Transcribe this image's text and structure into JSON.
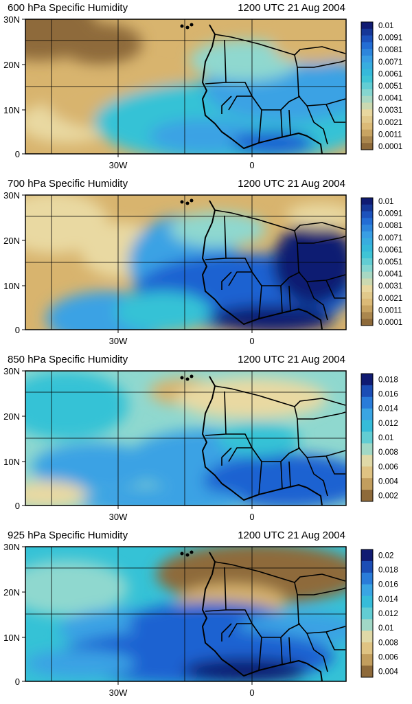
{
  "colors": {
    "brown": "#8e6a3a",
    "tan": "#d8b46e",
    "cream": "#e9d9a2",
    "aqua": "#8fd8cf",
    "cyan": "#35c2d6",
    "sky": "#3aa2e4",
    "blue": "#1f62d1",
    "navy": "#101b72",
    "coast": "#000000",
    "grid": "#000000"
  },
  "panels": [
    {
      "title": "600 hPa Specific Humidity",
      "time": "1200 UTC 21 Aug 2004",
      "lat_ticks": [
        "30N",
        "20N",
        "10N",
        "0"
      ],
      "lon_ticks": [
        "30W",
        "0"
      ],
      "colorbar_labels": [
        "0.01",
        "0.0091",
        "0.0081",
        "0.0071",
        "0.0061",
        "0.0051",
        "0.0041",
        "0.0031",
        "0.0021",
        "0.0011",
        "0.0001"
      ],
      "colorbar_levels": 19
    },
    {
      "title": "700 hPa Specific Humidity",
      "time": "1200 UTC 21 Aug 2004",
      "lat_ticks": [
        "30N",
        "20N",
        "10N",
        "0"
      ],
      "lon_ticks": [
        "30W",
        "0"
      ],
      "colorbar_labels": [
        "0.01",
        "0.0091",
        "0.0081",
        "0.0071",
        "0.0061",
        "0.0051",
        "0.0041",
        "0.0031",
        "0.0021",
        "0.0011",
        "0.0001"
      ],
      "colorbar_levels": 19
    },
    {
      "title": "850 hPa Specific Humidity",
      "time": "1200 UTC 21 Aug 2004",
      "lat_ticks": [
        "30N",
        "20N",
        "10N",
        "0"
      ],
      "lon_ticks": [
        "30W",
        "0"
      ],
      "colorbar_labels": [
        "0.018",
        "0.016",
        "0.014",
        "0.012",
        "0.01",
        "0.008",
        "0.006",
        "0.004",
        "0.002"
      ],
      "colorbar_levels": 11
    },
    {
      "title": "925 hPa Specific Humidity",
      "time": "1200 UTC 21 Aug 2004",
      "lat_ticks": [
        "30N",
        "20N",
        "10N",
        "0"
      ],
      "lon_ticks": [
        "30W",
        "0"
      ],
      "colorbar_labels": [
        "0.02",
        "0.018",
        "0.016",
        "0.014",
        "0.012",
        "0.01",
        "0.008",
        "0.006",
        "0.004"
      ],
      "colorbar_levels": 11
    }
  ]
}
